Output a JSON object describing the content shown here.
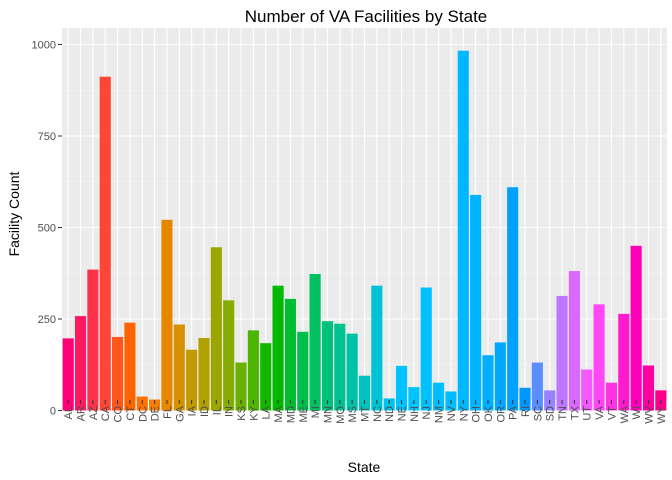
{
  "chart_data": {
    "type": "bar",
    "title": "Number of VA Facilities by State",
    "xlabel": "State",
    "ylabel": "Facility Count",
    "ylim": [
      0,
      1050
    ],
    "yticks": [
      0,
      250,
      500,
      750,
      1000
    ],
    "grid": true,
    "legend": "none",
    "colors": {
      "panel_background": "#ebebeb",
      "grid_major": "#ffffff",
      "grid_minor": "#f5f5f5"
    },
    "categories": [
      "AL",
      "AR",
      "AZ",
      "CA",
      "CO",
      "CT",
      "DC",
      "DE",
      "FL",
      "GA",
      "IA",
      "ID",
      "IL",
      "IN",
      "KS",
      "KY",
      "LA",
      "MA",
      "MD",
      "ME",
      "MI",
      "MN",
      "MO",
      "MS",
      "MT",
      "NC",
      "ND",
      "NE",
      "NH",
      "NJ",
      "NM",
      "NV",
      "NY",
      "OH",
      "OK",
      "OR",
      "PA",
      "RI",
      "SC",
      "SD",
      "TN",
      "TX",
      "UT",
      "VA",
      "VT",
      "WA",
      "WI",
      "WV",
      "WY"
    ],
    "values": [
      197,
      258,
      385,
      912,
      201,
      240,
      38,
      30,
      521,
      235,
      166,
      198,
      446,
      301,
      131,
      219,
      184,
      341,
      305,
      215,
      373,
      244,
      237,
      210,
      95,
      341,
      33,
      122,
      64,
      336,
      76,
      52,
      983,
      589,
      151,
      186,
      610,
      62,
      131,
      55,
      313,
      381,
      112,
      290,
      76,
      264,
      450,
      123,
      55
    ]
  }
}
